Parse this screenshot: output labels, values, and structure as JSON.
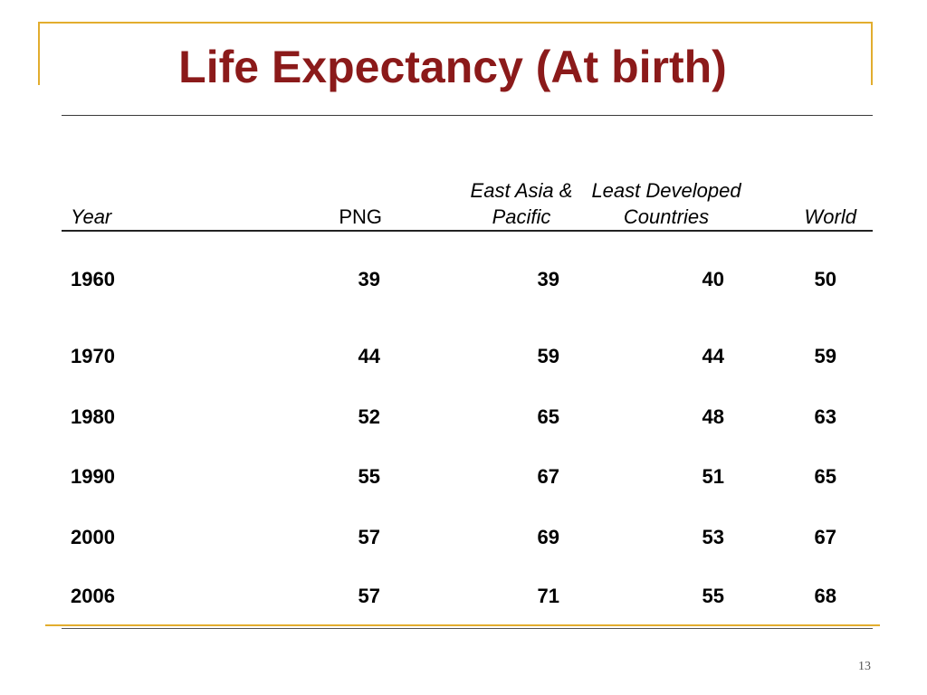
{
  "slide": {
    "title": "Life Expectancy (At birth)",
    "page_number": "13"
  },
  "table": {
    "headers": {
      "year": "Year",
      "png": "PNG",
      "eap_line1": "East Asia &",
      "eap_line2": "Pacific",
      "ldc_line1": "Least Developed",
      "ldc_line2": "Countries",
      "world": "World"
    },
    "rows": [
      {
        "year": "1960",
        "png": "39",
        "eap": "39",
        "ldc": "40",
        "world": "50"
      },
      {
        "year": "1970",
        "png": "44",
        "eap": "59",
        "ldc": "44",
        "world": "59"
      },
      {
        "year": "1980",
        "png": "52",
        "eap": "65",
        "ldc": "48",
        "world": "63"
      },
      {
        "year": "1990",
        "png": "55",
        "eap": "67",
        "ldc": "51",
        "world": "65"
      },
      {
        "year": "2000",
        "png": "57",
        "eap": "69",
        "ldc": "53",
        "world": "67"
      },
      {
        "year": "2006",
        "png": "57",
        "eap": "71",
        "ldc": "55",
        "world": "68"
      }
    ]
  },
  "colors": {
    "title": "#8b1a1a",
    "accent_rule": "#e2ad2e"
  }
}
